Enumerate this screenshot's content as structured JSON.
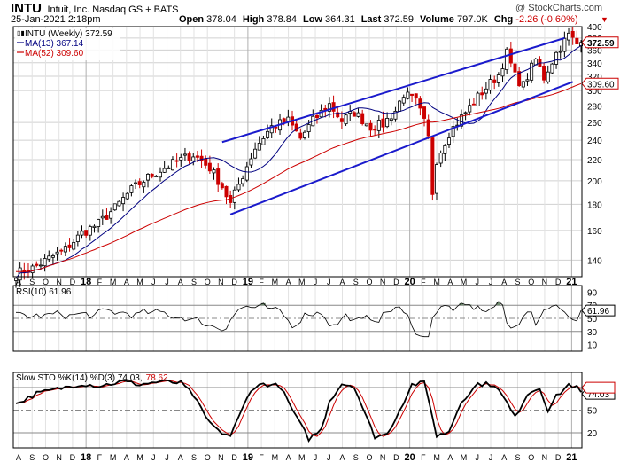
{
  "header": {
    "symbol": "INTU",
    "company": "Intuit, Inc.  Nasdaq GS + BATS",
    "watermark": "@ StockCharts.com",
    "date": "25-Jan-2021 2:18pm",
    "ohlc": [
      {
        "label": "Open",
        "value": "378.04"
      },
      {
        "label": "High",
        "value": "378.84"
      },
      {
        "label": "Low",
        "value": "364.31"
      },
      {
        "label": "Last",
        "value": "372.59"
      },
      {
        "label": "Volume",
        "value": "797.0K"
      },
      {
        "label": "Chg",
        "value": "-2.26 (-0.60%)"
      }
    ],
    "chg_color": "#cc0000"
  },
  "chart_data": [
    {
      "type": "candlestick",
      "title": "",
      "legend": [
        {
          "name": "INTU (Weekly) 372.59",
          "color": "#000000"
        },
        {
          "name": "MA(13) 367.14",
          "color": "#000080"
        },
        {
          "name": "MA(52) 309.60",
          "color": "#cc0000"
        }
      ],
      "legend_placement": "top-left",
      "y_scale": "log",
      "ylim": [
        130,
        400
      ],
      "y_ticks": [
        140,
        160,
        180,
        200,
        220,
        240,
        260,
        280,
        300,
        320,
        340,
        360,
        380,
        400
      ],
      "right_labels": [
        {
          "value": 372.59,
          "text": "372.59",
          "color": "#cc0000"
        },
        {
          "value": 309.6,
          "text": "309.60",
          "color": "#cc0000"
        }
      ],
      "x_ticks": [
        "A",
        "S",
        "O",
        "N",
        "D",
        "18",
        "F",
        "M",
        "A",
        "M",
        "J",
        "J",
        "A",
        "S",
        "O",
        "N",
        "D",
        "19",
        "F",
        "M",
        "A",
        "M",
        "J",
        "J",
        "A",
        "S",
        "O",
        "N",
        "D",
        "20",
        "F",
        "M",
        "A",
        "M",
        "J",
        "J",
        "A",
        "S",
        "O",
        "N",
        "D",
        "21"
      ],
      "price_anchors": [
        [
          0,
          132
        ],
        [
          4,
          135
        ],
        [
          8,
          141
        ],
        [
          12,
          147
        ],
        [
          16,
          158
        ],
        [
          20,
          165
        ],
        [
          24,
          177
        ],
        [
          28,
          192
        ],
        [
          32,
          203
        ],
        [
          36,
          212
        ],
        [
          40,
          220
        ],
        [
          43,
          225
        ],
        [
          47,
          212
        ],
        [
          50,
          195
        ],
        [
          52,
          180
        ],
        [
          55,
          205
        ],
        [
          58,
          232
        ],
        [
          62,
          255
        ],
        [
          66,
          262
        ],
        [
          69,
          242
        ],
        [
          72,
          262
        ],
        [
          76,
          282
        ],
        [
          79,
          262
        ],
        [
          82,
          272
        ],
        [
          86,
          255
        ],
        [
          89,
          258
        ],
        [
          92,
          274
        ],
        [
          94,
          296
        ],
        [
          97,
          285
        ],
        [
          99,
          260
        ],
        [
          100,
          242
        ],
        [
          101,
          190
        ],
        [
          102,
          220
        ],
        [
          105,
          248
        ],
        [
          109,
          272
        ],
        [
          113,
          298
        ],
        [
          117,
          322
        ],
        [
          119,
          355
        ],
        [
          121,
          320
        ],
        [
          123,
          307
        ],
        [
          126,
          345
        ],
        [
          128,
          318
        ],
        [
          131,
          355
        ],
        [
          134,
          385
        ],
        [
          136,
          370
        ],
        [
          137,
          372.59
        ]
      ],
      "ma13_last": 367.14,
      "ma52_last": 309.6,
      "trendlines": [
        {
          "from": [
            50,
            238
          ],
          "to": [
            133,
            380
          ],
          "color": "#1a1acc"
        },
        {
          "from": [
            52,
            172
          ],
          "to": [
            135,
            312
          ],
          "color": "#1a1acc"
        }
      ]
    },
    {
      "type": "line",
      "title": "RSI(10) 61.96",
      "ylim": [
        0,
        100
      ],
      "y_ticks": [
        10,
        30,
        50,
        70,
        90
      ],
      "reference_lines": [
        30,
        50,
        70
      ],
      "current": 61.96
    },
    {
      "type": "line",
      "title": "Slow STO %K(14) %D(3) 74.03, 78.62",
      "k_label": "Slow STO %K(14) %D(3) 74.03,",
      "d_label": "78.62",
      "ylim": [
        0,
        100
      ],
      "y_ticks": [
        20,
        50,
        80
      ],
      "reference_lines": [
        20,
        50,
        80
      ],
      "k_current": 74.03,
      "d_current": 78.62,
      "k_anchors": [
        [
          0,
          58
        ],
        [
          5,
          72
        ],
        [
          10,
          78
        ],
        [
          16,
          85
        ],
        [
          20,
          82
        ],
        [
          26,
          88
        ],
        [
          30,
          84
        ],
        [
          35,
          88
        ],
        [
          40,
          86
        ],
        [
          43,
          70
        ],
        [
          46,
          40
        ],
        [
          49,
          22
        ],
        [
          52,
          16
        ],
        [
          54,
          40
        ],
        [
          57,
          78
        ],
        [
          60,
          85
        ],
        [
          64,
          82
        ],
        [
          68,
          40
        ],
        [
          71,
          12
        ],
        [
          74,
          24
        ],
        [
          76,
          62
        ],
        [
          79,
          85
        ],
        [
          82,
          82
        ],
        [
          85,
          40
        ],
        [
          87,
          15
        ],
        [
          90,
          18
        ],
        [
          93,
          50
        ],
        [
          96,
          84
        ],
        [
          99,
          86
        ],
        [
          101,
          42
        ],
        [
          102,
          15
        ],
        [
          105,
          22
        ],
        [
          108,
          62
        ],
        [
          112,
          85
        ],
        [
          116,
          84
        ],
        [
          119,
          60
        ],
        [
          121,
          40
        ],
        [
          124,
          72
        ],
        [
          127,
          80
        ],
        [
          129,
          50
        ],
        [
          131,
          68
        ],
        [
          134,
          84
        ],
        [
          136,
          80
        ],
        [
          137,
          74
        ]
      ]
    }
  ],
  "colors": {
    "up": "#000000",
    "down": "#cc0000",
    "ma13": "#000080",
    "ma52": "#cc0000",
    "rsi_fill": "#5a7a5a",
    "grid": "#d0d0d0",
    "trend": "#1a1acc"
  }
}
